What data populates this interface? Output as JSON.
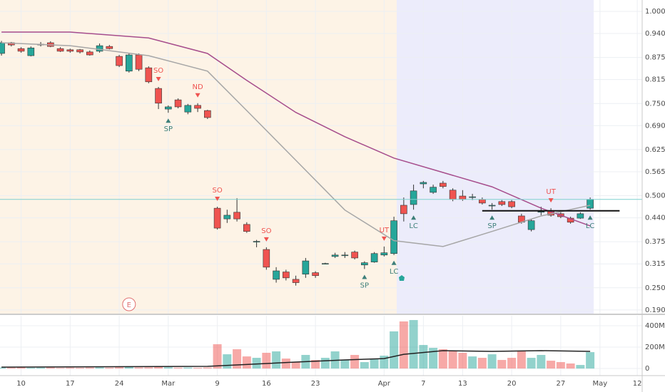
{
  "chart_data": [
    {
      "type": "candlestick",
      "up_color": "#26a69a",
      "down_color": "#ef5350",
      "candles": [
        [
          0.886,
          0.92,
          0.88,
          0.915
        ],
        [
          0.915,
          0.917,
          0.905,
          0.909
        ],
        [
          0.899,
          0.903,
          0.888,
          0.892
        ],
        [
          0.88,
          0.905,
          0.878,
          0.901
        ],
        [
          0.911,
          0.917,
          0.905,
          0.911
        ],
        [
          0.915,
          0.919,
          0.903,
          0.905
        ],
        [
          0.899,
          0.903,
          0.89,
          0.892
        ],
        [
          0.896,
          0.899,
          0.888,
          0.892
        ],
        [
          0.896,
          0.898,
          0.886,
          0.89
        ],
        [
          0.89,
          0.894,
          0.88,
          0.882
        ],
        [
          0.892,
          0.913,
          0.888,
          0.907
        ],
        [
          0.905,
          0.909,
          0.897,
          0.899
        ],
        [
          0.878,
          0.882,
          0.849,
          0.853
        ],
        [
          0.838,
          0.886,
          0.834,
          0.882
        ],
        [
          0.882,
          0.886,
          0.838,
          0.843
        ],
        [
          0.847,
          0.851,
          0.805,
          0.809
        ],
        [
          0.791,
          0.795,
          0.735,
          0.751
        ],
        [
          0.735,
          0.745,
          0.725,
          0.741
        ],
        [
          0.76,
          0.764,
          0.737,
          0.741
        ],
        [
          0.727,
          0.749,
          0.721,
          0.745
        ],
        [
          0.745,
          0.751,
          0.727,
          0.737
        ],
        [
          0.731,
          0.733,
          0.708,
          0.712
        ],
        [
          0.466,
          0.47,
          0.408,
          0.412
        ],
        [
          0.437,
          0.462,
          0.426,
          0.447
        ],
        [
          0.455,
          0.493,
          0.43,
          0.437
        ],
        [
          0.422,
          0.428,
          0.399,
          0.403
        ],
        [
          0.376,
          0.38,
          0.36,
          0.376
        ],
        [
          0.354,
          0.36,
          0.299,
          0.306
        ],
        [
          0.273,
          0.306,
          0.264,
          0.296
        ],
        [
          0.293,
          0.299,
          0.27,
          0.277
        ],
        [
          0.273,
          0.283,
          0.256,
          0.264
        ],
        [
          0.287,
          0.331,
          0.277,
          0.323
        ],
        [
          0.291,
          0.295,
          0.277,
          0.283
        ],
        [
          0.316,
          0.318,
          0.314,
          0.316
        ],
        [
          0.335,
          0.345,
          0.331,
          0.339
        ],
        [
          0.339,
          0.347,
          0.331,
          0.339
        ],
        [
          0.347,
          0.351,
          0.327,
          0.331
        ],
        [
          0.312,
          0.322,
          0.301,
          0.318
        ],
        [
          0.32,
          0.347,
          0.318,
          0.343
        ],
        [
          0.339,
          0.362,
          0.335,
          0.345
        ],
        [
          0.343,
          0.443,
          0.339,
          0.432
        ],
        [
          0.474,
          0.495,
          0.43,
          0.451
        ],
        [
          0.476,
          0.53,
          0.462,
          0.513
        ],
        [
          0.532,
          0.54,
          0.52,
          0.536
        ],
        [
          0.509,
          0.53,
          0.505,
          0.523
        ],
        [
          0.534,
          0.54,
          0.52,
          0.525
        ],
        [
          0.515,
          0.52,
          0.485,
          0.49
        ],
        [
          0.499,
          0.515,
          0.486,
          0.49
        ],
        [
          0.497,
          0.505,
          0.488,
          0.497
        ],
        [
          0.49,
          0.495,
          0.476,
          0.48
        ],
        [
          0.474,
          0.48,
          0.462,
          0.474
        ],
        [
          0.484,
          0.488,
          0.472,
          0.476
        ],
        [
          0.484,
          0.488,
          0.466,
          0.47
        ],
        [
          0.445,
          0.451,
          0.424,
          0.428
        ],
        [
          0.408,
          0.437,
          0.403,
          0.432
        ],
        [
          0.457,
          0.47,
          0.447,
          0.457
        ],
        [
          0.459,
          0.466,
          0.443,
          0.447
        ],
        [
          0.451,
          0.455,
          0.439,
          0.443
        ],
        [
          0.439,
          0.443,
          0.424,
          0.428
        ],
        [
          0.439,
          0.455,
          0.437,
          0.451
        ],
        [
          0.466,
          0.495,
          0.462,
          0.49
        ]
      ],
      "series": [
        {
          "color": "#a64d8c",
          "x": [
            0,
            7,
            15,
            21,
            25,
            30,
            35,
            40,
            45,
            50,
            55,
            60
          ],
          "values": [
            0.944,
            0.944,
            0.928,
            0.886,
            0.813,
            0.726,
            0.66,
            0.602,
            0.563,
            0.524,
            0.466,
            0.418
          ]
        },
        {
          "color": "#a6a6a6",
          "x": [
            0,
            7,
            15,
            21,
            25,
            30,
            35,
            40,
            45,
            50,
            55,
            60
          ],
          "values": [
            0.915,
            0.907,
            0.88,
            0.838,
            0.731,
            0.596,
            0.461,
            0.378,
            0.362,
            0.403,
            0.445,
            0.474
          ]
        }
      ],
      "trendline": {
        "value": 0.459,
        "x": [
          49,
          63
        ]
      },
      "annotations": [
        {
          "text": "SO",
          "x": 16,
          "side": "above",
          "color": "#ef5350"
        },
        {
          "text": "ND",
          "x": 20,
          "side": "above",
          "color": "#ef5350"
        },
        {
          "text": "SP",
          "x": 17,
          "side": "below",
          "color": "#3d7f7a"
        },
        {
          "text": "SO",
          "x": 22,
          "side": "above",
          "color": "#ef5350"
        },
        {
          "text": "SO",
          "x": 27,
          "side": "above",
          "color": "#ef5350"
        },
        {
          "text": "SP",
          "x": 37,
          "side": "below",
          "color": "#3d7f7a"
        },
        {
          "text": "UT",
          "x": 39,
          "side": "above",
          "color": "#ef5350"
        },
        {
          "text": "LC",
          "x": 40,
          "side": "below",
          "color": "#3d7f7a"
        },
        {
          "text": "LC",
          "x": 42,
          "side": "below",
          "color": "#3d7f7a"
        },
        {
          "text": "SP",
          "x": 50,
          "side": "below",
          "color": "#3d7f7a"
        },
        {
          "text": "UT",
          "x": 56,
          "side": "above",
          "color": "#ef5350"
        },
        {
          "text": "LC",
          "x": 60,
          "side": "below",
          "color": "#3d7f7a"
        }
      ],
      "events": [
        {
          "text": "E",
          "x": 13
        }
      ],
      "xlim": [
        -0.15,
        65.3
      ],
      "xticks": [
        {
          "value": 2,
          "label": "10"
        },
        {
          "value": 7,
          "label": "17"
        },
        {
          "value": 12,
          "label": "24"
        },
        {
          "value": 17,
          "label": "Mar"
        },
        {
          "value": 22,
          "label": "9"
        },
        {
          "value": 27,
          "label": "16"
        },
        {
          "value": 32,
          "label": "23"
        },
        {
          "value": 39,
          "label": "Apr"
        },
        {
          "value": 43,
          "label": "7"
        },
        {
          "value": 47,
          "label": "13"
        },
        {
          "value": 52,
          "label": "20"
        },
        {
          "value": 57,
          "label": "27"
        },
        {
          "value": 61,
          "label": "May"
        },
        {
          "value": 64.8,
          "label": "12"
        }
      ],
      "ylim": [
        0.18,
        1.031
      ],
      "yticks": [
        {
          "value": 1.0,
          "label": "1.000"
        },
        {
          "value": 0.94,
          "label": "0.940"
        },
        {
          "value": 0.875,
          "label": "0.875"
        },
        {
          "value": 0.815,
          "label": "0.815"
        },
        {
          "value": 0.75,
          "label": "0.750"
        },
        {
          "value": 0.69,
          "label": "0.690"
        },
        {
          "value": 0.625,
          "label": "0.625"
        },
        {
          "value": 0.565,
          "label": "0.565"
        },
        {
          "value": 0.5,
          "label": "0.500"
        },
        {
          "value": 0.44,
          "label": "0.440"
        },
        {
          "value": 0.375,
          "label": "0.375"
        },
        {
          "value": 0.315,
          "label": "0.315"
        },
        {
          "value": 0.25,
          "label": "0.250"
        },
        {
          "value": 0.19,
          "label": "0.190"
        }
      ],
      "grid": true
    },
    {
      "type": "bar",
      "up_color": "rgba(38,166,154,0.5)",
      "down_color": "rgba(239,83,80,0.5)",
      "values": [
        9000000,
        8000000,
        10000000,
        7000000,
        8000000,
        9000000,
        6000000,
        8000000,
        7000000,
        9000000,
        10000000,
        8000000,
        12000000,
        15000000,
        10000000,
        11000000,
        20000000,
        12000000,
        8000000,
        9000000,
        7000000,
        10000000,
        227000000,
        133000000,
        180000000,
        113000000,
        100000000,
        147000000,
        160000000,
        93000000,
        60000000,
        127000000,
        80000000,
        100000000,
        160000000,
        80000000,
        127000000,
        60000000,
        93000000,
        120000000,
        347000000,
        440000000,
        453000000,
        220000000,
        193000000,
        180000000,
        167000000,
        147000000,
        113000000,
        100000000,
        133000000,
        80000000,
        100000000,
        167000000,
        100000000,
        127000000,
        73000000,
        60000000,
        47000000,
        33000000,
        153000000
      ],
      "series": [
        {
          "color": "#222222",
          "x": [
            0,
            21,
            30,
            35,
            39,
            41,
            45,
            50,
            55,
            60
          ],
          "values": [
            13000000,
            20000000,
            60000000,
            80000000,
            93000000,
            133000000,
            167000000,
            160000000,
            167000000,
            160000000
          ]
        }
      ],
      "ylim": [
        -53000000,
        480000000
      ],
      "yticks": [
        0,
        {
          "value": 200000000,
          "label": "200M"
        },
        {
          "value": 400000000,
          "label": "400M"
        }
      ]
    }
  ]
}
